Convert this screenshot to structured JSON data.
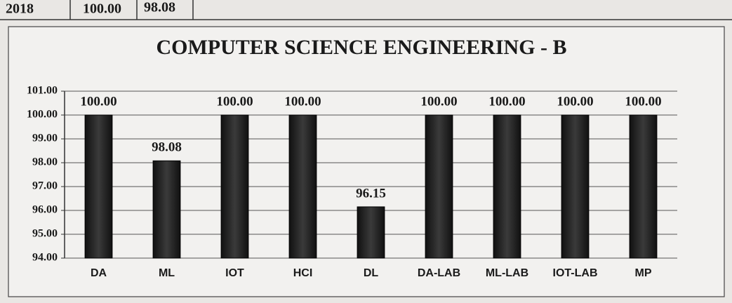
{
  "table_row": [
    "2018",
    "100.00",
    "98.08"
  ],
  "chart_data": {
    "type": "bar",
    "title": "COMPUTER SCIENCE ENGINEERING - B",
    "categories": [
      "DA",
      "ML",
      "IOT",
      "HCI",
      "DL",
      "DA-LAB",
      "ML-LAB",
      "IOT-LAB",
      "MP"
    ],
    "values": [
      100,
      98.08,
      100,
      100,
      96.15,
      100,
      100,
      100,
      100
    ],
    "value_labels": [
      "100.00",
      "98.08",
      "100.00",
      "100.00",
      "96.15",
      "100.00",
      "100.00",
      "100.00",
      "100.00"
    ],
    "color": "#262626",
    "ylim": [
      94,
      101
    ],
    "yticks": [
      {
        "value": 94,
        "label": "94.00"
      },
      {
        "value": 95,
        "label": "95.00"
      },
      {
        "value": 96,
        "label": "96.00"
      },
      {
        "value": 97,
        "label": "97.00"
      },
      {
        "value": 98,
        "label": "98.00"
      },
      {
        "value": 99,
        "label": "99.00"
      },
      {
        "value": 100,
        "label": "100.00"
      },
      {
        "value": 101,
        "label": "101.00"
      }
    ],
    "grid": true
  }
}
